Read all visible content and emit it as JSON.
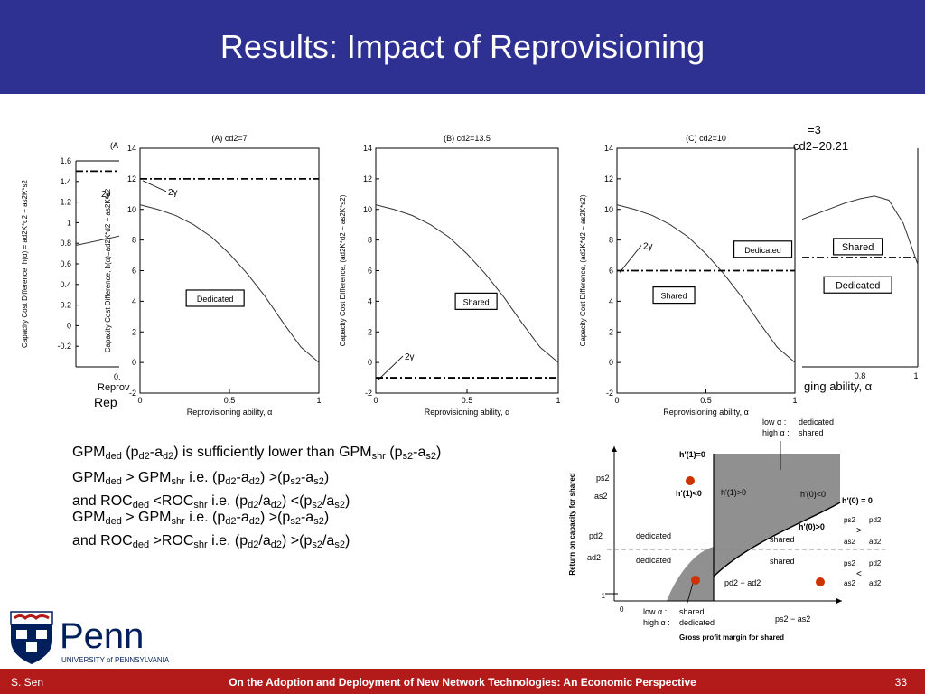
{
  "slide": {
    "title": "Results: Impact of Reprovisioning",
    "author": "S. Sen",
    "footer_title": "On the Adoption and Deployment of New Network Technologies: An Economic Perspective",
    "page_number": "33"
  },
  "logo": {
    "name": "Penn",
    "subtitle": "UNIVERSITY of PENNSYLVANIA"
  },
  "bullets": [
    {
      "parts": [
        [
          "GPM",
          ""
        ],
        [
          "ded",
          "sub"
        ],
        [
          " (p",
          ""
        ],
        [
          "d2",
          "sub"
        ],
        [
          "-a",
          ""
        ],
        [
          "d2",
          "sub"
        ],
        [
          ") is sufficiently lower than GPM",
          ""
        ],
        [
          "shr",
          "sub"
        ],
        [
          " (p",
          ""
        ],
        [
          "s2",
          "sub"
        ],
        [
          "-a",
          ""
        ],
        [
          "s2",
          "sub"
        ],
        [
          ")",
          ""
        ]
      ]
    },
    {
      "parts": [
        [
          "GPM",
          ""
        ],
        [
          "ded",
          "sub"
        ],
        [
          " > GPM",
          ""
        ],
        [
          "shr",
          "sub"
        ],
        [
          "  i.e. (p",
          ""
        ],
        [
          "d2",
          "sub"
        ],
        [
          "-a",
          ""
        ],
        [
          "d2",
          "sub"
        ],
        [
          ") >(p",
          ""
        ],
        [
          "s2",
          "sub"
        ],
        [
          "-a",
          ""
        ],
        [
          "s2",
          "sub"
        ],
        [
          ")",
          ""
        ]
      ]
    },
    {
      "parts": [
        [
          "and ROC",
          ""
        ],
        [
          "ded",
          "sub"
        ],
        [
          " <ROC",
          ""
        ],
        [
          "shr",
          "sub"
        ],
        [
          " i.e. (p",
          ""
        ],
        [
          "d2",
          "sub"
        ],
        [
          "/a",
          ""
        ],
        [
          "d2",
          "sub"
        ],
        [
          ") <(p",
          ""
        ],
        [
          "s2",
          "sub"
        ],
        [
          "/a",
          ""
        ],
        [
          "s2",
          "sub"
        ],
        [
          ")",
          ""
        ]
      ]
    },
    {
      "parts": [
        [
          "GPM",
          ""
        ],
        [
          "ded",
          "sub"
        ],
        [
          " > GPM",
          ""
        ],
        [
          "shr",
          "sub"
        ],
        [
          "  i.e. (p",
          ""
        ],
        [
          "d2",
          "sub"
        ],
        [
          "-a",
          ""
        ],
        [
          "d2",
          "sub"
        ],
        [
          ") >(p",
          ""
        ],
        [
          "s2",
          "sub"
        ],
        [
          "-a",
          ""
        ],
        [
          "s2",
          "sub"
        ],
        [
          ")",
          ""
        ]
      ]
    },
    {
      "parts": [
        [
          "and ROC",
          ""
        ],
        [
          "ded",
          "sub"
        ],
        [
          " >ROC",
          ""
        ],
        [
          "shr",
          "sub"
        ],
        [
          " i.e. (p",
          ""
        ],
        [
          "d2",
          "sub"
        ],
        [
          "/a",
          ""
        ],
        [
          "d2",
          "sub"
        ],
        [
          ") >(p",
          ""
        ],
        [
          "s2",
          "sub"
        ],
        [
          "/a",
          ""
        ],
        [
          "s2",
          "sub"
        ],
        [
          ")",
          ""
        ]
      ]
    }
  ],
  "chart_data": [
    {
      "type": "line",
      "title": "(A) cd2=7",
      "xlabel": "Reprovisioning ability, α",
      "ylabel": "Capacity Cost Difference, h(α)=ad2K*d2 − as2K*s2",
      "xlim": [
        0,
        1
      ],
      "ylim": [
        -2,
        14
      ],
      "xticks": [
        0,
        0.5,
        1
      ],
      "yticks": [
        -2,
        0,
        2,
        4,
        6,
        8,
        10,
        12,
        14
      ],
      "curve": {
        "x": [
          0,
          0.1,
          0.2,
          0.3,
          0.4,
          0.5,
          0.6,
          0.7,
          0.8,
          0.9,
          1.0
        ],
        "y": [
          10.3,
          10.0,
          9.6,
          9.0,
          8.2,
          7.1,
          5.8,
          4.3,
          2.6,
          1.0,
          0.0
        ]
      },
      "threshold": {
        "y": 12,
        "label": "2γ"
      },
      "region_labels": [
        {
          "text": "Dedicated",
          "x": 0.42,
          "y": 4.2
        }
      ]
    },
    {
      "type": "line",
      "title": "(B) cd2=13.5",
      "xlabel": "Reprovisioning ability, α",
      "ylabel": "Capacity Cost Difference, (ad2K*d2 − as2K*s2)",
      "xlim": [
        0,
        1
      ],
      "ylim": [
        -2,
        14
      ],
      "xticks": [
        0,
        0.5,
        1
      ],
      "yticks": [
        -2,
        0,
        2,
        4,
        6,
        8,
        10,
        12,
        14
      ],
      "curve": {
        "x": [
          0,
          0.1,
          0.2,
          0.3,
          0.4,
          0.5,
          0.6,
          0.7,
          0.8,
          0.9,
          1.0
        ],
        "y": [
          10.3,
          10.0,
          9.6,
          9.0,
          8.2,
          7.1,
          5.8,
          4.3,
          2.6,
          1.0,
          0.0
        ]
      },
      "threshold": {
        "y": -1,
        "label": "2γ"
      },
      "region_labels": [
        {
          "text": "Shared",
          "x": 0.55,
          "y": 4.0
        }
      ]
    },
    {
      "type": "line",
      "title": "(C) cd2=10",
      "xlabel": "Reprovisioning ability, α",
      "ylabel": "Capacity Cost Difference, (ad2K*d2 − as2K*s2)",
      "xlim": [
        0,
        1
      ],
      "ylim": [
        -2,
        14
      ],
      "xticks": [
        0,
        0.5,
        1
      ],
      "yticks": [
        -2,
        0,
        2,
        4,
        6,
        8,
        10,
        12,
        14
      ],
      "curve": {
        "x": [
          0,
          0.1,
          0.2,
          0.3,
          0.4,
          0.5,
          0.6,
          0.7,
          0.8,
          0.9,
          1.0
        ],
        "y": [
          10.3,
          10.0,
          9.6,
          9.0,
          8.2,
          7.1,
          5.8,
          4.3,
          2.6,
          1.0,
          0.0
        ]
      },
      "threshold": {
        "y": 6,
        "label": "2γ"
      },
      "region_labels": [
        {
          "text": "Dedicated",
          "x": 0.82,
          "y": 7.4
        },
        {
          "text": "Shared",
          "x": 0.32,
          "y": 4.4
        }
      ]
    },
    {
      "type": "line",
      "title": "=3",
      "subtitle": "cd2=20.21",
      "xlabel": "ging ability, α",
      "xlim": [
        0.6,
        1
      ],
      "ylim": [
        -2,
        14
      ],
      "xticks": [
        0.8,
        1
      ],
      "curve": {
        "x": [
          0.6,
          0.65,
          0.7,
          0.75,
          0.8,
          0.85,
          0.9,
          0.95,
          1.0
        ],
        "y": [
          8.8,
          9.2,
          9.6,
          10.0,
          10.3,
          10.5,
          10.2,
          8.5,
          5.5
        ]
      },
      "threshold": {
        "y": 6
      },
      "region_labels": [
        {
          "text": "Shared",
          "x": 0.73,
          "y": 6.8
        },
        {
          "text": "Dedicated",
          "x": 0.73,
          "y": 4.0
        }
      ]
    },
    {
      "type": "line",
      "title": "(A",
      "xlabel": "Reprov",
      "xlabel2": "Rep",
      "ylabel": "Capacity Cost Difference, h(α) = ad2K*d2 − as2K*s2",
      "ylim": [
        -0.4,
        1.6
      ],
      "yticks": [
        -0.2,
        0,
        0.2,
        0.4,
        0.6,
        0.8,
        1,
        1.2,
        1.4,
        1.6
      ],
      "xticks": [
        0
      ],
      "threshold": {
        "y": 1.5,
        "label": "2γ"
      },
      "curve": {
        "x": [
          0,
          0.05
        ],
        "y": [
          0.78,
          0.87
        ]
      }
    },
    {
      "type": "area",
      "xlabel": "Gross profit margin for shared",
      "ylabel": "Return on capacity for shared",
      "axis_labels": [
        "0",
        "1"
      ],
      "curve_labels": [
        "h'(1)=0",
        "h'(1)<0",
        "h'(1)>0",
        "h'(0)<0",
        "h'(0) = 0",
        "h'(0)>0"
      ],
      "region_labels": [
        "dedicated",
        "dedicated",
        "shared",
        "shared"
      ],
      "legend_top": [
        "low α :",
        "dedicated",
        "high α :",
        "shared"
      ],
      "legend_bottom": [
        "low α :",
        "shared",
        "high α :",
        "dedicated"
      ],
      "x_markers": [
        "pd2 − ad2",
        "ps2 − as2"
      ],
      "y_markers": [
        "ps2",
        "as2",
        "pd2",
        "ad2"
      ],
      "ratio_gt": [
        "ps2",
        "as2",
        ">",
        "pd2",
        "ad2"
      ],
      "ratio_lt": [
        "ps2",
        "as2",
        "<",
        "pd2",
        "ad2"
      ],
      "points": [
        {
          "name": "upper-left",
          "color": "#cc3300"
        },
        {
          "name": "lower-left",
          "color": "#cc3300"
        },
        {
          "name": "lower-right",
          "color": "#cc3300"
        }
      ]
    }
  ]
}
